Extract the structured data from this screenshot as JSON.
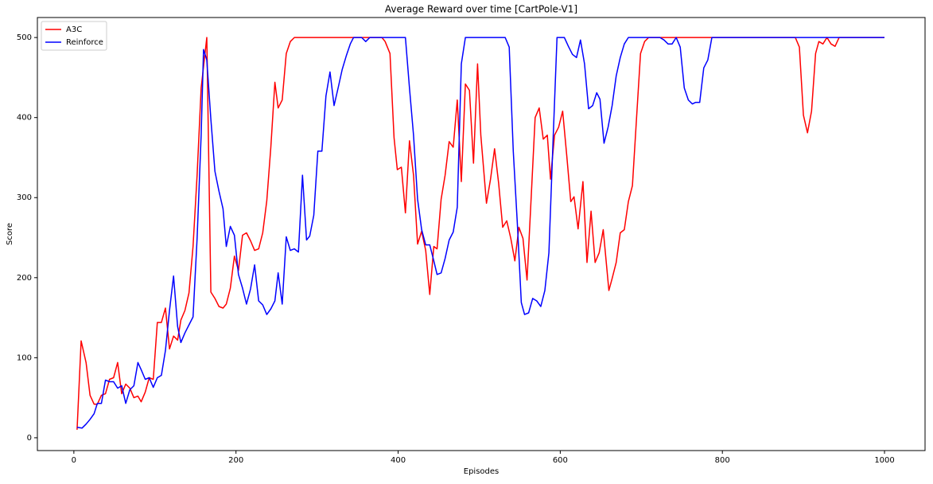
{
  "chart_data": {
    "type": "line",
    "title": "Average Reward over time [CartPole-V1]",
    "xlabel": "Episodes",
    "ylabel": "Score",
    "xlim": [
      -45,
      1050
    ],
    "ylim": [
      -16,
      525
    ],
    "xticks": [
      0,
      200,
      400,
      600,
      800,
      1000
    ],
    "yticks": [
      0,
      100,
      200,
      300,
      400,
      500
    ],
    "grid": false,
    "legend": "upper left",
    "series": [
      {
        "name": "A3C",
        "color": "#ff0000",
        "x": [
          4,
          9,
          15,
          20,
          25,
          29,
          34,
          39,
          44,
          49,
          54,
          59,
          64,
          69,
          74,
          79,
          83,
          88,
          93,
          98,
          103,
          108,
          113,
          118,
          123,
          128,
          132,
          137,
          142,
          147,
          152,
          157,
          164,
          169,
          174,
          179,
          184,
          188,
          193,
          198,
          203,
          208,
          213,
          218,
          223,
          228,
          233,
          238,
          243,
          248,
          252,
          257,
          262,
          267,
          272,
          380,
          384,
          390,
          395,
          399,
          404,
          409,
          414,
          419,
          424,
          429,
          434,
          439,
          444,
          448,
          453,
          458,
          463,
          468,
          473,
          478,
          483,
          488,
          493,
          498,
          502,
          509,
          514,
          519,
          524,
          529,
          534,
          539,
          544,
          549,
          554,
          559,
          564,
          569,
          574,
          579,
          584,
          588,
          593,
          598,
          603,
          608,
          613,
          617,
          622,
          628,
          633,
          638,
          643,
          648,
          653,
          660,
          664,
          669,
          674,
          679,
          684,
          689,
          694,
          699,
          704,
          709,
          890,
          895,
          900,
          905,
          910,
          915,
          919,
          924,
          929,
          934,
          939,
          944,
          1000
        ],
        "values": [
          10,
          121,
          94,
          53,
          42,
          42,
          53,
          55,
          73,
          75,
          94,
          55,
          67,
          62,
          50,
          52,
          45,
          57,
          75,
          73,
          144,
          144,
          162,
          111,
          127,
          122,
          147,
          159,
          181,
          239,
          328,
          437,
          500,
          182,
          174,
          164,
          162,
          167,
          187,
          227,
          209,
          253,
          256,
          246,
          234,
          236,
          256,
          296,
          363,
          444,
          412,
          422,
          480,
          495,
          500,
          500,
          495,
          480,
          375,
          335,
          338,
          281,
          371,
          328,
          242,
          258,
          234,
          179,
          239,
          236,
          298,
          328,
          370,
          363,
          422,
          320,
          442,
          434,
          343,
          467,
          378,
          293,
          323,
          361,
          318,
          263,
          271,
          249,
          221,
          263,
          249,
          197,
          298,
          400,
          412,
          373,
          378,
          323,
          378,
          388,
          408,
          353,
          295,
          301,
          261,
          320,
          219,
          283,
          219,
          231,
          260,
          184,
          199,
          219,
          256,
          260,
          295,
          315,
          398,
          480,
          495,
          500,
          500,
          488,
          403,
          381,
          408,
          480,
          495,
          492,
          500,
          492,
          489,
          500,
          500
        ]
      },
      {
        "name": "Reinforce",
        "color": "#0000ff",
        "x": [
          4,
          10,
          15,
          20,
          25,
          29,
          34,
          39,
          44,
          49,
          54,
          59,
          64,
          69,
          74,
          79,
          83,
          88,
          93,
          98,
          103,
          108,
          113,
          118,
          123,
          128,
          132,
          137,
          142,
          147,
          152,
          157,
          160,
          164,
          169,
          174,
          179,
          184,
          188,
          193,
          198,
          203,
          208,
          213,
          218,
          223,
          228,
          233,
          238,
          243,
          248,
          252,
          257,
          262,
          267,
          272,
          277,
          282,
          287,
          291,
          296,
          301,
          306,
          311,
          316,
          321,
          326,
          331,
          336,
          341,
          345,
          355,
          360,
          365,
          409,
          414,
          419,
          424,
          429,
          434,
          439,
          444,
          448,
          453,
          458,
          463,
          468,
          473,
          478,
          483,
          532,
          537,
          542,
          547,
          552,
          556,
          561,
          566,
          571,
          576,
          581,
          586,
          591,
          596,
          605,
          610,
          615,
          620,
          625,
          630,
          635,
          640,
          645,
          649,
          654,
          659,
          664,
          669,
          674,
          679,
          684,
          723,
          728,
          733,
          738,
          743,
          748,
          753,
          758,
          763,
          767,
          772,
          777,
          782,
          787,
          1000
        ],
        "values": [
          13,
          12,
          17,
          23,
          30,
          43,
          43,
          72,
          70,
          70,
          62,
          65,
          43,
          60,
          65,
          94,
          85,
          73,
          75,
          63,
          75,
          78,
          109,
          159,
          202,
          139,
          119,
          131,
          141,
          151,
          249,
          378,
          485,
          472,
          398,
          333,
          308,
          286,
          239,
          264,
          253,
          204,
          187,
          167,
          186,
          216,
          171,
          166,
          154,
          161,
          171,
          206,
          167,
          251,
          234,
          236,
          232,
          328,
          247,
          252,
          278,
          358,
          358,
          427,
          457,
          415,
          437,
          460,
          477,
          492,
          500,
          500,
          495,
          500,
          500,
          437,
          378,
          298,
          260,
          241,
          241,
          221,
          204,
          206,
          224,
          247,
          257,
          288,
          467,
          500,
          500,
          488,
          358,
          268,
          169,
          154,
          156,
          174,
          171,
          164,
          184,
          231,
          368,
          500,
          500,
          489,
          479,
          475,
          497,
          467,
          411,
          415,
          431,
          423,
          368,
          388,
          415,
          452,
          475,
          492,
          500,
          500,
          497,
          492,
          492,
          500,
          488,
          437,
          422,
          417,
          419,
          419,
          462,
          472,
          500,
          500
        ]
      }
    ]
  }
}
